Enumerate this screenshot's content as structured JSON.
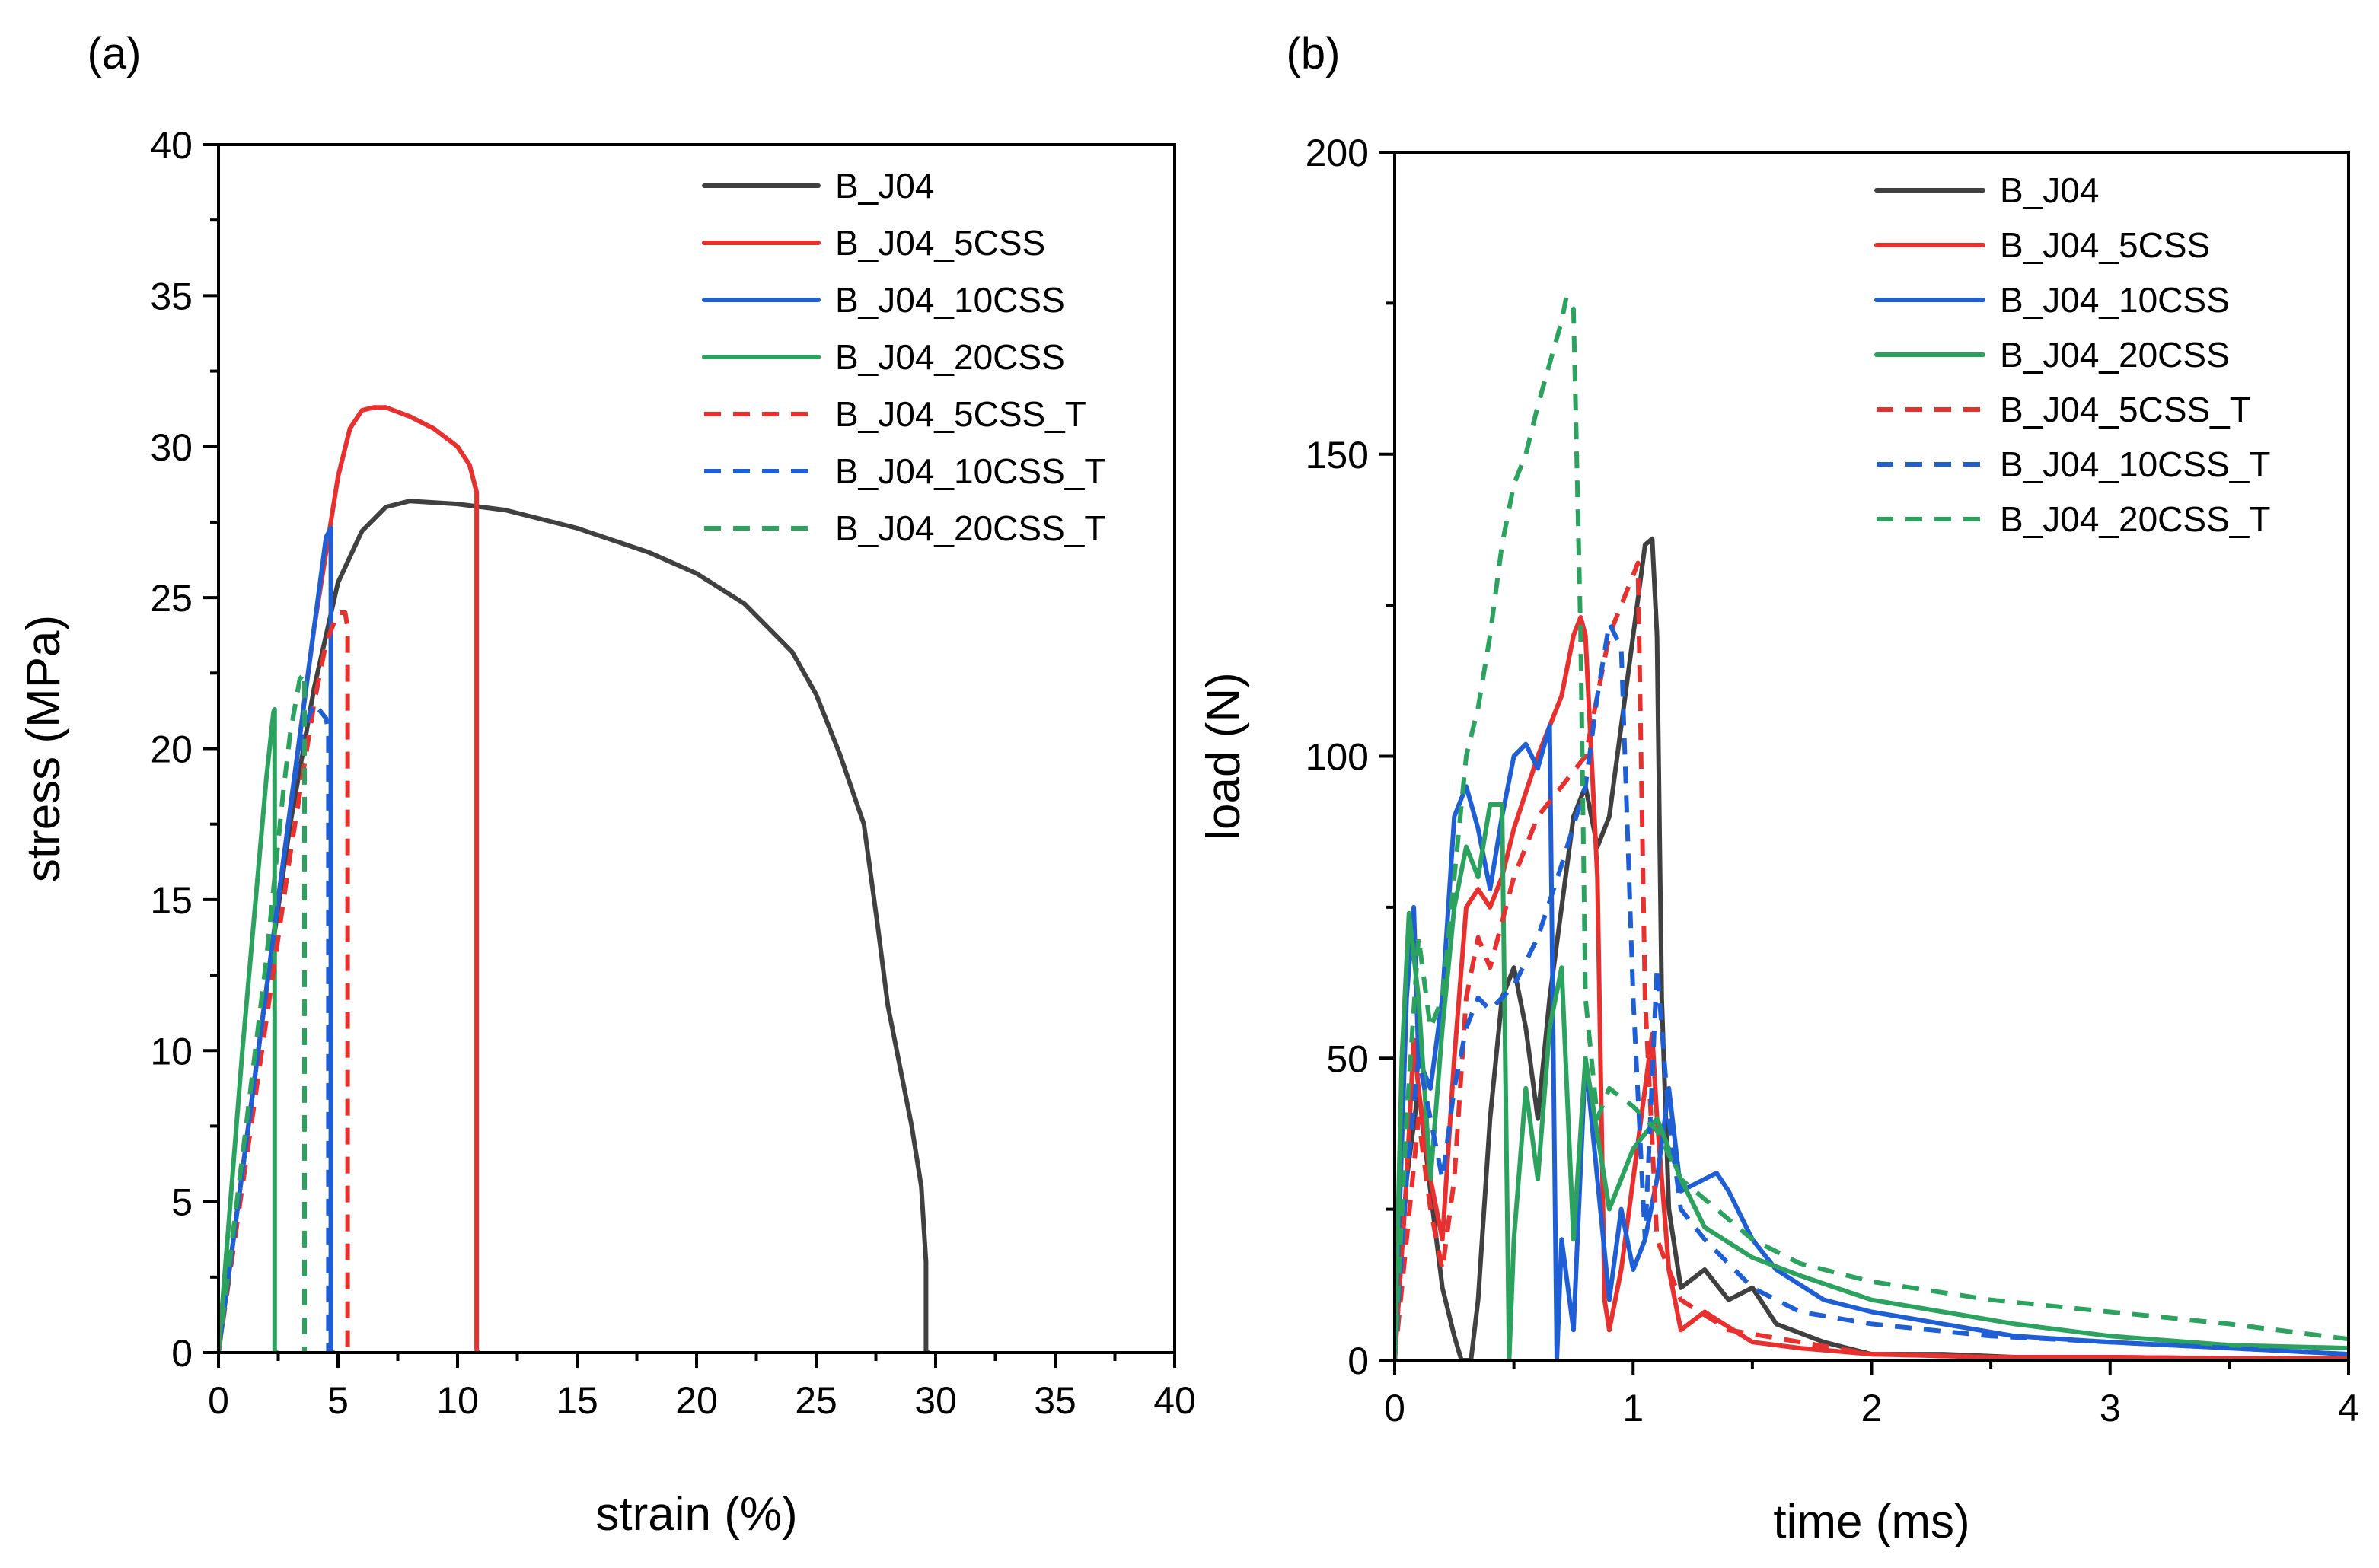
{
  "chart_data": [
    {
      "type": "line",
      "panel_label": "(a)",
      "xlabel": "strain (%)",
      "ylabel": "stress (MPa)",
      "xlim": [
        0,
        40
      ],
      "ylim": [
        0,
        40
      ],
      "xticks": [
        0,
        5,
        10,
        15,
        20,
        25,
        30,
        35,
        40
      ],
      "yticks": [
        0,
        5,
        10,
        15,
        20,
        25,
        30,
        35,
        40
      ],
      "legend_position": "top-right",
      "series": [
        {
          "name": "B_J04",
          "color": "#404040",
          "style": "solid",
          "x": [
            0,
            1,
            2,
            3,
            4,
            5,
            6,
            7,
            8,
            10,
            12,
            15,
            18,
            20,
            22,
            24,
            25,
            26,
            27,
            27.6,
            28,
            28.5,
            29,
            29.4,
            29.6,
            29.6,
            29.7
          ],
          "y": [
            0,
            6,
            12,
            17.5,
            22,
            25.5,
            27.2,
            28,
            28.2,
            28.1,
            27.9,
            27.3,
            26.5,
            25.8,
            24.8,
            23.2,
            21.8,
            19.8,
            17.5,
            14,
            11.5,
            9.5,
            7.5,
            5.5,
            3,
            0,
            0
          ]
        },
        {
          "name": "B_J04_5CSS",
          "color": "#e8302f",
          "style": "solid",
          "x": [
            0,
            1,
            2,
            3,
            4,
            5,
            5.5,
            6,
            6.5,
            7,
            8,
            9,
            10,
            10.5,
            10.8,
            10.8,
            10.9
          ],
          "y": [
            0,
            6,
            12,
            18,
            24,
            29,
            30.6,
            31.2,
            31.3,
            31.3,
            31,
            30.6,
            30,
            29.4,
            28.5,
            0,
            0
          ]
        },
        {
          "name": "B_J04_10CSS",
          "color": "#1f5fd6",
          "style": "solid",
          "x": [
            0,
            1,
            2,
            3,
            4,
            4.5,
            4.7,
            4.7,
            4.8
          ],
          "y": [
            0,
            6,
            12,
            18,
            24,
            27,
            27.3,
            0,
            0
          ]
        },
        {
          "name": "B_J04_20CSS",
          "color": "#2ca25f",
          "style": "solid",
          "x": [
            0,
            0.5,
            1,
            1.5,
            2,
            2.3,
            2.35,
            2.35,
            2.45
          ],
          "y": [
            0,
            5,
            10,
            14.5,
            19,
            21.2,
            21.3,
            0,
            0
          ]
        },
        {
          "name": "B_J04_5CSS_T",
          "color": "#e8302f",
          "style": "dashed",
          "x": [
            0,
            1,
            2,
            3,
            4,
            4.5,
            5,
            5.3,
            5.4,
            5.4
          ],
          "y": [
            0,
            5.5,
            11,
            16.5,
            21.5,
            23.5,
            24.5,
            24.5,
            24,
            0
          ]
        },
        {
          "name": "B_J04_10CSS_T",
          "color": "#1f5fd6",
          "style": "dashed",
          "x": [
            0,
            1,
            2,
            3,
            3.5,
            4,
            4.5,
            4.6,
            4.6
          ],
          "y": [
            0,
            6,
            12,
            18,
            20.5,
            21.5,
            21,
            20.5,
            0
          ]
        },
        {
          "name": "B_J04_20CSS_T",
          "color": "#2ca25f",
          "style": "dashed",
          "x": [
            0,
            1,
            2,
            2.7,
            3,
            3.4,
            3.6,
            3.6
          ],
          "y": [
            0,
            6.5,
            13,
            18.5,
            20.5,
            22.3,
            22.5,
            0
          ]
        }
      ]
    },
    {
      "type": "line",
      "panel_label": "(b)",
      "xlabel": "time (ms)",
      "ylabel": "load (N)",
      "xlim": [
        0,
        4
      ],
      "ylim": [
        0,
        200
      ],
      "xticks": [
        0,
        1,
        2,
        3,
        4
      ],
      "yticks": [
        0,
        50,
        100,
        150,
        200
      ],
      "legend_position": "top-right",
      "series": [
        {
          "name": "B_J04",
          "color": "#404040",
          "style": "solid",
          "x": [
            0,
            0.05,
            0.1,
            0.15,
            0.2,
            0.25,
            0.28,
            0.3,
            0.32,
            0.35,
            0.4,
            0.45,
            0.5,
            0.55,
            0.6,
            0.65,
            0.7,
            0.75,
            0.8,
            0.85,
            0.9,
            0.95,
            1.0,
            1.05,
            1.08,
            1.1,
            1.12,
            1.15,
            1.2,
            1.3,
            1.4,
            1.5,
            1.6,
            1.8,
            2.0,
            2.3,
            2.6,
            3.0,
            3.5,
            4.0
          ],
          "y": [
            0,
            30,
            45,
            28,
            12,
            4,
            0,
            0,
            0,
            10,
            40,
            60,
            65,
            55,
            40,
            60,
            75,
            90,
            95,
            85,
            90,
            105,
            120,
            135,
            136,
            120,
            60,
            25,
            12,
            15,
            10,
            12,
            6,
            3,
            1,
            1,
            0.5,
            0.5,
            0.3,
            0.3
          ]
        },
        {
          "name": "B_J04_5CSS",
          "color": "#e8302f",
          "style": "solid",
          "x": [
            0,
            0.05,
            0.08,
            0.1,
            0.15,
            0.2,
            0.25,
            0.3,
            0.35,
            0.4,
            0.45,
            0.5,
            0.6,
            0.7,
            0.75,
            0.78,
            0.8,
            0.85,
            0.88,
            0.9,
            0.95,
            1.0,
            1.05,
            1.08,
            1.1,
            1.15,
            1.2,
            1.3,
            1.5,
            1.7,
            2.0,
            2.5,
            3.0,
            3.5,
            4.0
          ],
          "y": [
            0,
            30,
            53,
            45,
            30,
            20,
            50,
            75,
            78,
            75,
            80,
            88,
            100,
            110,
            120,
            123,
            120,
            80,
            10,
            5,
            15,
            30,
            45,
            54,
            40,
            15,
            5,
            8,
            3,
            2,
            1,
            0.5,
            0.5,
            0.3,
            0.3
          ]
        },
        {
          "name": "B_J04_10CSS",
          "color": "#1f5fd6",
          "style": "solid",
          "x": [
            0,
            0.05,
            0.08,
            0.1,
            0.15,
            0.2,
            0.25,
            0.3,
            0.35,
            0.4,
            0.45,
            0.5,
            0.55,
            0.6,
            0.65,
            0.68,
            0.7,
            0.75,
            0.8,
            0.85,
            0.9,
            0.95,
            1.0,
            1.05,
            1.1,
            1.15,
            1.2,
            1.3,
            1.35,
            1.4,
            1.5,
            1.6,
            1.8,
            2.0,
            2.3,
            2.6,
            3.0,
            3.5,
            4.0
          ],
          "y": [
            0,
            60,
            75,
            50,
            45,
            60,
            90,
            95,
            88,
            78,
            90,
            100,
            102,
            98,
            105,
            0,
            20,
            5,
            50,
            30,
            10,
            25,
            15,
            20,
            30,
            45,
            28,
            30,
            31,
            28,
            20,
            15,
            10,
            8,
            6,
            4,
            3,
            2,
            1
          ]
        },
        {
          "name": "B_J04_20CSS",
          "color": "#2ca25f",
          "style": "solid",
          "x": [
            0,
            0.03,
            0.06,
            0.1,
            0.15,
            0.2,
            0.25,
            0.3,
            0.35,
            0.4,
            0.45,
            0.48,
            0.5,
            0.55,
            0.6,
            0.65,
            0.7,
            0.75,
            0.8,
            0.9,
            1.0,
            1.1,
            1.2,
            1.3,
            1.5,
            1.7,
            2.0,
            2.3,
            2.6,
            3.0,
            3.5,
            4.0
          ],
          "y": [
            0,
            50,
            74,
            60,
            30,
            55,
            75,
            85,
            80,
            92,
            92,
            0,
            20,
            45,
            30,
            55,
            65,
            20,
            50,
            25,
            35,
            40,
            30,
            22,
            17,
            14,
            10,
            8,
            6,
            4,
            2.5,
            2
          ]
        },
        {
          "name": "B_J04_5CSS_T",
          "color": "#e8302f",
          "style": "dashed",
          "x": [
            0,
            0.05,
            0.1,
            0.15,
            0.2,
            0.25,
            0.3,
            0.35,
            0.4,
            0.5,
            0.6,
            0.7,
            0.8,
            0.9,
            1.0,
            1.02,
            1.05,
            1.1,
            1.2,
            1.4,
            1.7,
            2.0,
            2.5,
            3.0,
            3.5,
            4.0
          ],
          "y": [
            0,
            20,
            40,
            25,
            15,
            30,
            60,
            70,
            65,
            80,
            90,
            95,
            100,
            120,
            130,
            132,
            60,
            20,
            10,
            5,
            3,
            1,
            0.5,
            0.5,
            0.3,
            0.3
          ]
        },
        {
          "name": "B_J04_10CSS_T",
          "color": "#1f5fd6",
          "style": "dashed",
          "x": [
            0,
            0.05,
            0.1,
            0.15,
            0.2,
            0.25,
            0.3,
            0.35,
            0.4,
            0.5,
            0.6,
            0.7,
            0.8,
            0.85,
            0.9,
            0.95,
            1.0,
            1.05,
            1.1,
            1.15,
            1.2,
            1.3,
            1.5,
            1.7,
            2.0,
            2.5,
            3.0,
            3.5,
            4.0
          ],
          "y": [
            0,
            30,
            50,
            40,
            30,
            45,
            55,
            60,
            58,
            62,
            70,
            82,
            95,
            110,
            122,
            118,
            60,
            20,
            65,
            40,
            25,
            20,
            12,
            8,
            6,
            4,
            3,
            2,
            1
          ]
        },
        {
          "name": "B_J04_20CSS_T",
          "color": "#2ca25f",
          "style": "dashed",
          "x": [
            0,
            0.05,
            0.1,
            0.15,
            0.2,
            0.25,
            0.3,
            0.35,
            0.4,
            0.45,
            0.5,
            0.55,
            0.6,
            0.65,
            0.7,
            0.72,
            0.75,
            0.78,
            0.8,
            0.85,
            0.9,
            1.0,
            1.1,
            1.2,
            1.5,
            1.7,
            2.0,
            2.5,
            3.0,
            3.5,
            4.0
          ],
          "y": [
            0,
            40,
            70,
            55,
            60,
            80,
            100,
            108,
            120,
            135,
            145,
            150,
            158,
            165,
            172,
            176,
            174,
            120,
            60,
            40,
            45,
            42,
            38,
            30,
            20,
            16,
            13,
            10,
            8,
            6,
            3.5
          ]
        }
      ]
    }
  ]
}
